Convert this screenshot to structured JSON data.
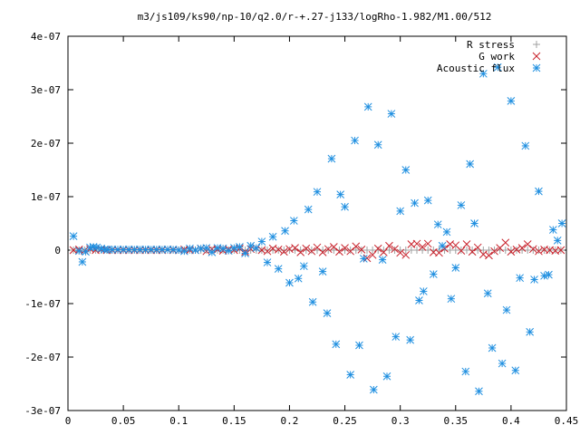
{
  "chart_data": {
    "type": "scatter",
    "title": "m3/js109/ks90/np-10/q2.0/r-+.27-j133/logRho-1.982/M1.00/512",
    "xlabel": "",
    "ylabel": "",
    "xlim": [
      0,
      0.45
    ],
    "ylim": [
      -3e-07,
      4e-07
    ],
    "x_ticks": [
      {
        "v": 0,
        "label": "0"
      },
      {
        "v": 0.05,
        "label": "0.05"
      },
      {
        "v": 0.1,
        "label": "0.1"
      },
      {
        "v": 0.15,
        "label": "0.15"
      },
      {
        "v": 0.2,
        "label": "0.2"
      },
      {
        "v": 0.25,
        "label": "0.25"
      },
      {
        "v": 0.3,
        "label": "0.3"
      },
      {
        "v": 0.35,
        "label": "0.35"
      },
      {
        "v": 0.4,
        "label": "0.4"
      },
      {
        "v": 0.45,
        "label": "0.45"
      }
    ],
    "y_ticks": [
      {
        "v": 4e-07,
        "label": "4e-07"
      },
      {
        "v": 3e-07,
        "label": "3e-07"
      },
      {
        "v": 2e-07,
        "label": "2e-07"
      },
      {
        "v": 1e-07,
        "label": "1e-07"
      },
      {
        "v": 0,
        "label": "0"
      },
      {
        "v": -1e-07,
        "label": "-1e-07"
      },
      {
        "v": -2e-07,
        "label": "-2e-07"
      },
      {
        "v": -3e-07,
        "label": "-3e-07"
      }
    ],
    "grid": false,
    "legend_position": "top-right",
    "series": [
      {
        "name": "R stress",
        "marker": "plus",
        "color": "#a0a0a0",
        "points": [
          [
            0.005,
            0
          ],
          [
            0.01,
            0
          ],
          [
            0.015,
            0
          ],
          [
            0.02,
            0
          ],
          [
            0.025,
            0
          ],
          [
            0.03,
            0
          ],
          [
            0.035,
            0
          ],
          [
            0.04,
            0
          ],
          [
            0.045,
            0
          ],
          [
            0.05,
            0
          ],
          [
            0.055,
            0
          ],
          [
            0.06,
            0
          ],
          [
            0.065,
            0
          ],
          [
            0.07,
            0
          ],
          [
            0.075,
            0
          ],
          [
            0.08,
            0
          ],
          [
            0.085,
            0
          ],
          [
            0.09,
            0
          ],
          [
            0.095,
            0
          ],
          [
            0.1,
            0
          ],
          [
            0.105,
            0
          ],
          [
            0.11,
            0
          ],
          [
            0.115,
            0
          ],
          [
            0.12,
            0
          ],
          [
            0.125,
            0
          ],
          [
            0.13,
            0
          ],
          [
            0.135,
            0
          ],
          [
            0.14,
            0
          ],
          [
            0.145,
            0
          ],
          [
            0.15,
            0
          ],
          [
            0.155,
            0
          ],
          [
            0.16,
            0
          ],
          [
            0.165,
            0
          ],
          [
            0.17,
            0
          ],
          [
            0.175,
            0
          ],
          [
            0.18,
            0
          ],
          [
            0.185,
            0
          ],
          [
            0.19,
            0
          ],
          [
            0.195,
            0
          ],
          [
            0.2,
            0
          ],
          [
            0.205,
            0
          ],
          [
            0.21,
            0
          ],
          [
            0.215,
            0
          ],
          [
            0.22,
            0
          ],
          [
            0.225,
            0
          ],
          [
            0.23,
            0
          ],
          [
            0.235,
            0
          ],
          [
            0.24,
            0
          ],
          [
            0.245,
            0
          ],
          [
            0.25,
            0
          ],
          [
            0.255,
            0
          ],
          [
            0.26,
            0
          ],
          [
            0.265,
            0
          ],
          [
            0.27,
            0
          ],
          [
            0.275,
            0
          ],
          [
            0.28,
            0
          ],
          [
            0.285,
            0
          ],
          [
            0.29,
            0
          ],
          [
            0.295,
            0
          ],
          [
            0.3,
            0
          ],
          [
            0.305,
            0
          ],
          [
            0.31,
            0
          ],
          [
            0.315,
            0
          ],
          [
            0.32,
            0
          ],
          [
            0.325,
            0
          ],
          [
            0.33,
            0
          ],
          [
            0.335,
            0
          ],
          [
            0.34,
            0
          ],
          [
            0.345,
            0
          ],
          [
            0.35,
            0
          ],
          [
            0.355,
            0
          ],
          [
            0.36,
            0
          ],
          [
            0.365,
            0
          ],
          [
            0.37,
            0
          ],
          [
            0.375,
            0
          ],
          [
            0.38,
            0
          ],
          [
            0.385,
            0
          ],
          [
            0.39,
            0
          ],
          [
            0.395,
            0
          ],
          [
            0.4,
            0
          ],
          [
            0.405,
            0
          ],
          [
            0.41,
            0
          ],
          [
            0.415,
            0
          ],
          [
            0.42,
            0
          ],
          [
            0.425,
            0
          ],
          [
            0.43,
            0
          ],
          [
            0.435,
            0
          ],
          [
            0.44,
            0
          ],
          [
            0.445,
            0
          ]
        ]
      },
      {
        "name": "G work",
        "marker": "cross",
        "color": "#c8202a",
        "points": [
          [
            0.005,
            0
          ],
          [
            0.01,
            1e-09
          ],
          [
            0.015,
            -1e-09
          ],
          [
            0.02,
            2e-09
          ],
          [
            0.025,
            0
          ],
          [
            0.03,
            1e-09
          ],
          [
            0.035,
            0
          ],
          [
            0.04,
            0
          ],
          [
            0.045,
            0
          ],
          [
            0.05,
            0
          ],
          [
            0.055,
            0
          ],
          [
            0.06,
            0
          ],
          [
            0.065,
            0
          ],
          [
            0.07,
            0
          ],
          [
            0.075,
            0
          ],
          [
            0.08,
            0
          ],
          [
            0.085,
            0
          ],
          [
            0.09,
            1e-09
          ],
          [
            0.095,
            0
          ],
          [
            0.1,
            0
          ],
          [
            0.105,
            1e-09
          ],
          [
            0.11,
            0
          ],
          [
            0.115,
            0
          ],
          [
            0.12,
            3e-09
          ],
          [
            0.125,
            -2e-09
          ],
          [
            0.13,
            2e-09
          ],
          [
            0.135,
            1e-09
          ],
          [
            0.14,
            -1e-09
          ],
          [
            0.145,
            2e-09
          ],
          [
            0.15,
            0
          ],
          [
            0.155,
            3e-09
          ],
          [
            0.16,
            -3e-09
          ],
          [
            0.165,
            2e-09
          ],
          [
            0.17,
            4e-09
          ],
          [
            0.175,
            0
          ],
          [
            0.18,
            -2e-09
          ],
          [
            0.185,
            3e-09
          ],
          [
            0.19,
            1e-09
          ],
          [
            0.195,
            -3e-09
          ],
          [
            0.2,
            2e-09
          ],
          [
            0.205,
            4e-09
          ],
          [
            0.21,
            -4e-09
          ],
          [
            0.215,
            3e-09
          ],
          [
            0.22,
            -2e-09
          ],
          [
            0.225,
            5e-09
          ],
          [
            0.23,
            -4e-09
          ],
          [
            0.235,
            2e-09
          ],
          [
            0.24,
            6e-09
          ],
          [
            0.245,
            -3e-09
          ],
          [
            0.25,
            4e-09
          ],
          [
            0.255,
            -2e-09
          ],
          [
            0.26,
            7e-09
          ],
          [
            0.265,
            1e-09
          ],
          [
            0.27,
            -1.5e-08
          ],
          [
            0.275,
            -9e-09
          ],
          [
            0.28,
            3e-09
          ],
          [
            0.285,
            -4e-09
          ],
          [
            0.29,
            8e-09
          ],
          [
            0.295,
            2e-09
          ],
          [
            0.3,
            -5e-09
          ],
          [
            0.305,
            -9e-09
          ],
          [
            0.31,
            1.1e-08
          ],
          [
            0.315,
            1.2e-08
          ],
          [
            0.32,
            6e-09
          ],
          [
            0.325,
            1.2e-08
          ],
          [
            0.33,
            -4e-09
          ],
          [
            0.335,
            -5e-09
          ],
          [
            0.34,
            3e-09
          ],
          [
            0.345,
            1.1e-08
          ],
          [
            0.35,
            9e-09
          ],
          [
            0.355,
            -1e-09
          ],
          [
            0.36,
            1.1e-08
          ],
          [
            0.365,
            -3e-09
          ],
          [
            0.37,
            5e-09
          ],
          [
            0.375,
            -8e-09
          ],
          [
            0.38,
            -1e-08
          ],
          [
            0.385,
            -2e-09
          ],
          [
            0.39,
            4e-09
          ],
          [
            0.395,
            1.4e-08
          ],
          [
            0.4,
            -3e-09
          ],
          [
            0.405,
            1e-09
          ],
          [
            0.41,
            4e-09
          ],
          [
            0.415,
            1.1e-08
          ],
          [
            0.42,
            2e-09
          ],
          [
            0.425,
            -2e-09
          ],
          [
            0.43,
            1e-09
          ],
          [
            0.435,
            0
          ],
          [
            0.44,
            -1e-09
          ],
          [
            0.445,
            0
          ]
        ]
      },
      {
        "name": "Acoustic flux",
        "marker": "star",
        "color": "#1f8fe0",
        "points": [
          [
            0.005,
            2.6e-08
          ],
          [
            0.01,
            -1.5e-09
          ],
          [
            0.013,
            -2.2e-08
          ],
          [
            0.016,
            -3e-09
          ],
          [
            0.02,
            5e-09
          ],
          [
            0.023,
            6e-09
          ],
          [
            0.026,
            5e-09
          ],
          [
            0.03,
            3e-09
          ],
          [
            0.033,
            1e-09
          ],
          [
            0.036,
            1e-09
          ],
          [
            0.04,
            1e-09
          ],
          [
            0.045,
            1e-09
          ],
          [
            0.05,
            1e-09
          ],
          [
            0.055,
            1e-09
          ],
          [
            0.06,
            1e-09
          ],
          [
            0.065,
            1e-09
          ],
          [
            0.07,
            1e-09
          ],
          [
            0.075,
            1e-09
          ],
          [
            0.08,
            1e-09
          ],
          [
            0.085,
            1e-09
          ],
          [
            0.09,
            1e-09
          ],
          [
            0.095,
            1e-09
          ],
          [
            0.1,
            0
          ],
          [
            0.105,
            -2e-09
          ],
          [
            0.11,
            3e-09
          ],
          [
            0.115,
            0
          ],
          [
            0.12,
            3e-09
          ],
          [
            0.125,
            4e-09
          ],
          [
            0.13,
            -4e-09
          ],
          [
            0.135,
            4e-09
          ],
          [
            0.14,
            3e-09
          ],
          [
            0.145,
            -1e-09
          ],
          [
            0.15,
            4e-09
          ],
          [
            0.155,
            6e-09
          ],
          [
            0.16,
            -6e-09
          ],
          [
            0.165,
            8e-09
          ],
          [
            0.17,
            4e-09
          ],
          [
            0.175,
            1.6e-08
          ],
          [
            0.18,
            -2.3e-08
          ],
          [
            0.185,
            2.5e-08
          ],
          [
            0.19,
            -3.5e-08
          ],
          [
            0.196,
            3.6e-08
          ],
          [
            0.2,
            -6.1e-08
          ],
          [
            0.204,
            5.5e-08
          ],
          [
            0.208,
            -5.3e-08
          ],
          [
            0.213,
            -3e-08
          ],
          [
            0.217,
            7.6e-08
          ],
          [
            0.221,
            -9.7e-08
          ],
          [
            0.225,
            1.09e-07
          ],
          [
            0.23,
            -4e-08
          ],
          [
            0.234,
            -1.18e-07
          ],
          [
            0.238,
            1.71e-07
          ],
          [
            0.242,
            -1.76e-07
          ],
          [
            0.246,
            1.04e-07
          ],
          [
            0.25,
            8.1e-08
          ],
          [
            0.255,
            -2.33e-07
          ],
          [
            0.259,
            2.05e-07
          ],
          [
            0.263,
            -1.78e-07
          ],
          [
            0.267,
            -1.6e-08
          ],
          [
            0.271,
            2.68e-07
          ],
          [
            0.276,
            -2.61e-07
          ],
          [
            0.28,
            1.97e-07
          ],
          [
            0.284,
            -1.8e-08
          ],
          [
            0.288,
            -2.36e-07
          ],
          [
            0.292,
            2.55e-07
          ],
          [
            0.296,
            -1.62e-07
          ],
          [
            0.3,
            7.3e-08
          ],
          [
            0.305,
            1.5e-07
          ],
          [
            0.309,
            -1.68e-07
          ],
          [
            0.313,
            8.8e-08
          ],
          [
            0.317,
            -9.4e-08
          ],
          [
            0.321,
            -7.7e-08
          ],
          [
            0.325,
            9.3e-08
          ],
          [
            0.33,
            -4.5e-08
          ],
          [
            0.334,
            4.8e-08
          ],
          [
            0.338,
            8e-09
          ],
          [
            0.342,
            3.4e-08
          ],
          [
            0.346,
            -9.1e-08
          ],
          [
            0.35,
            -3.3e-08
          ],
          [
            0.355,
            8.4e-08
          ],
          [
            0.359,
            -2.27e-07
          ],
          [
            0.363,
            1.61e-07
          ],
          [
            0.367,
            5e-08
          ],
          [
            0.371,
            -2.64e-07
          ],
          [
            0.375,
            3.3e-07
          ],
          [
            0.379,
            -8.1e-08
          ],
          [
            0.383,
            -1.83e-07
          ],
          [
            0.388,
            3.42e-07
          ],
          [
            0.392,
            -2.12e-07
          ],
          [
            0.396,
            -1.12e-07
          ],
          [
            0.4,
            2.79e-07
          ],
          [
            0.404,
            -2.25e-07
          ],
          [
            0.408,
            -5.2e-08
          ],
          [
            0.413,
            1.95e-07
          ],
          [
            0.417,
            -1.53e-07
          ],
          [
            0.421,
            -5.5e-08
          ],
          [
            0.425,
            1.1e-07
          ],
          [
            0.43,
            -4.8e-08
          ],
          [
            0.434,
            -4.6e-08
          ],
          [
            0.438,
            3.8e-08
          ],
          [
            0.442,
            1.8e-08
          ],
          [
            0.446,
            5e-08
          ]
        ]
      }
    ]
  }
}
